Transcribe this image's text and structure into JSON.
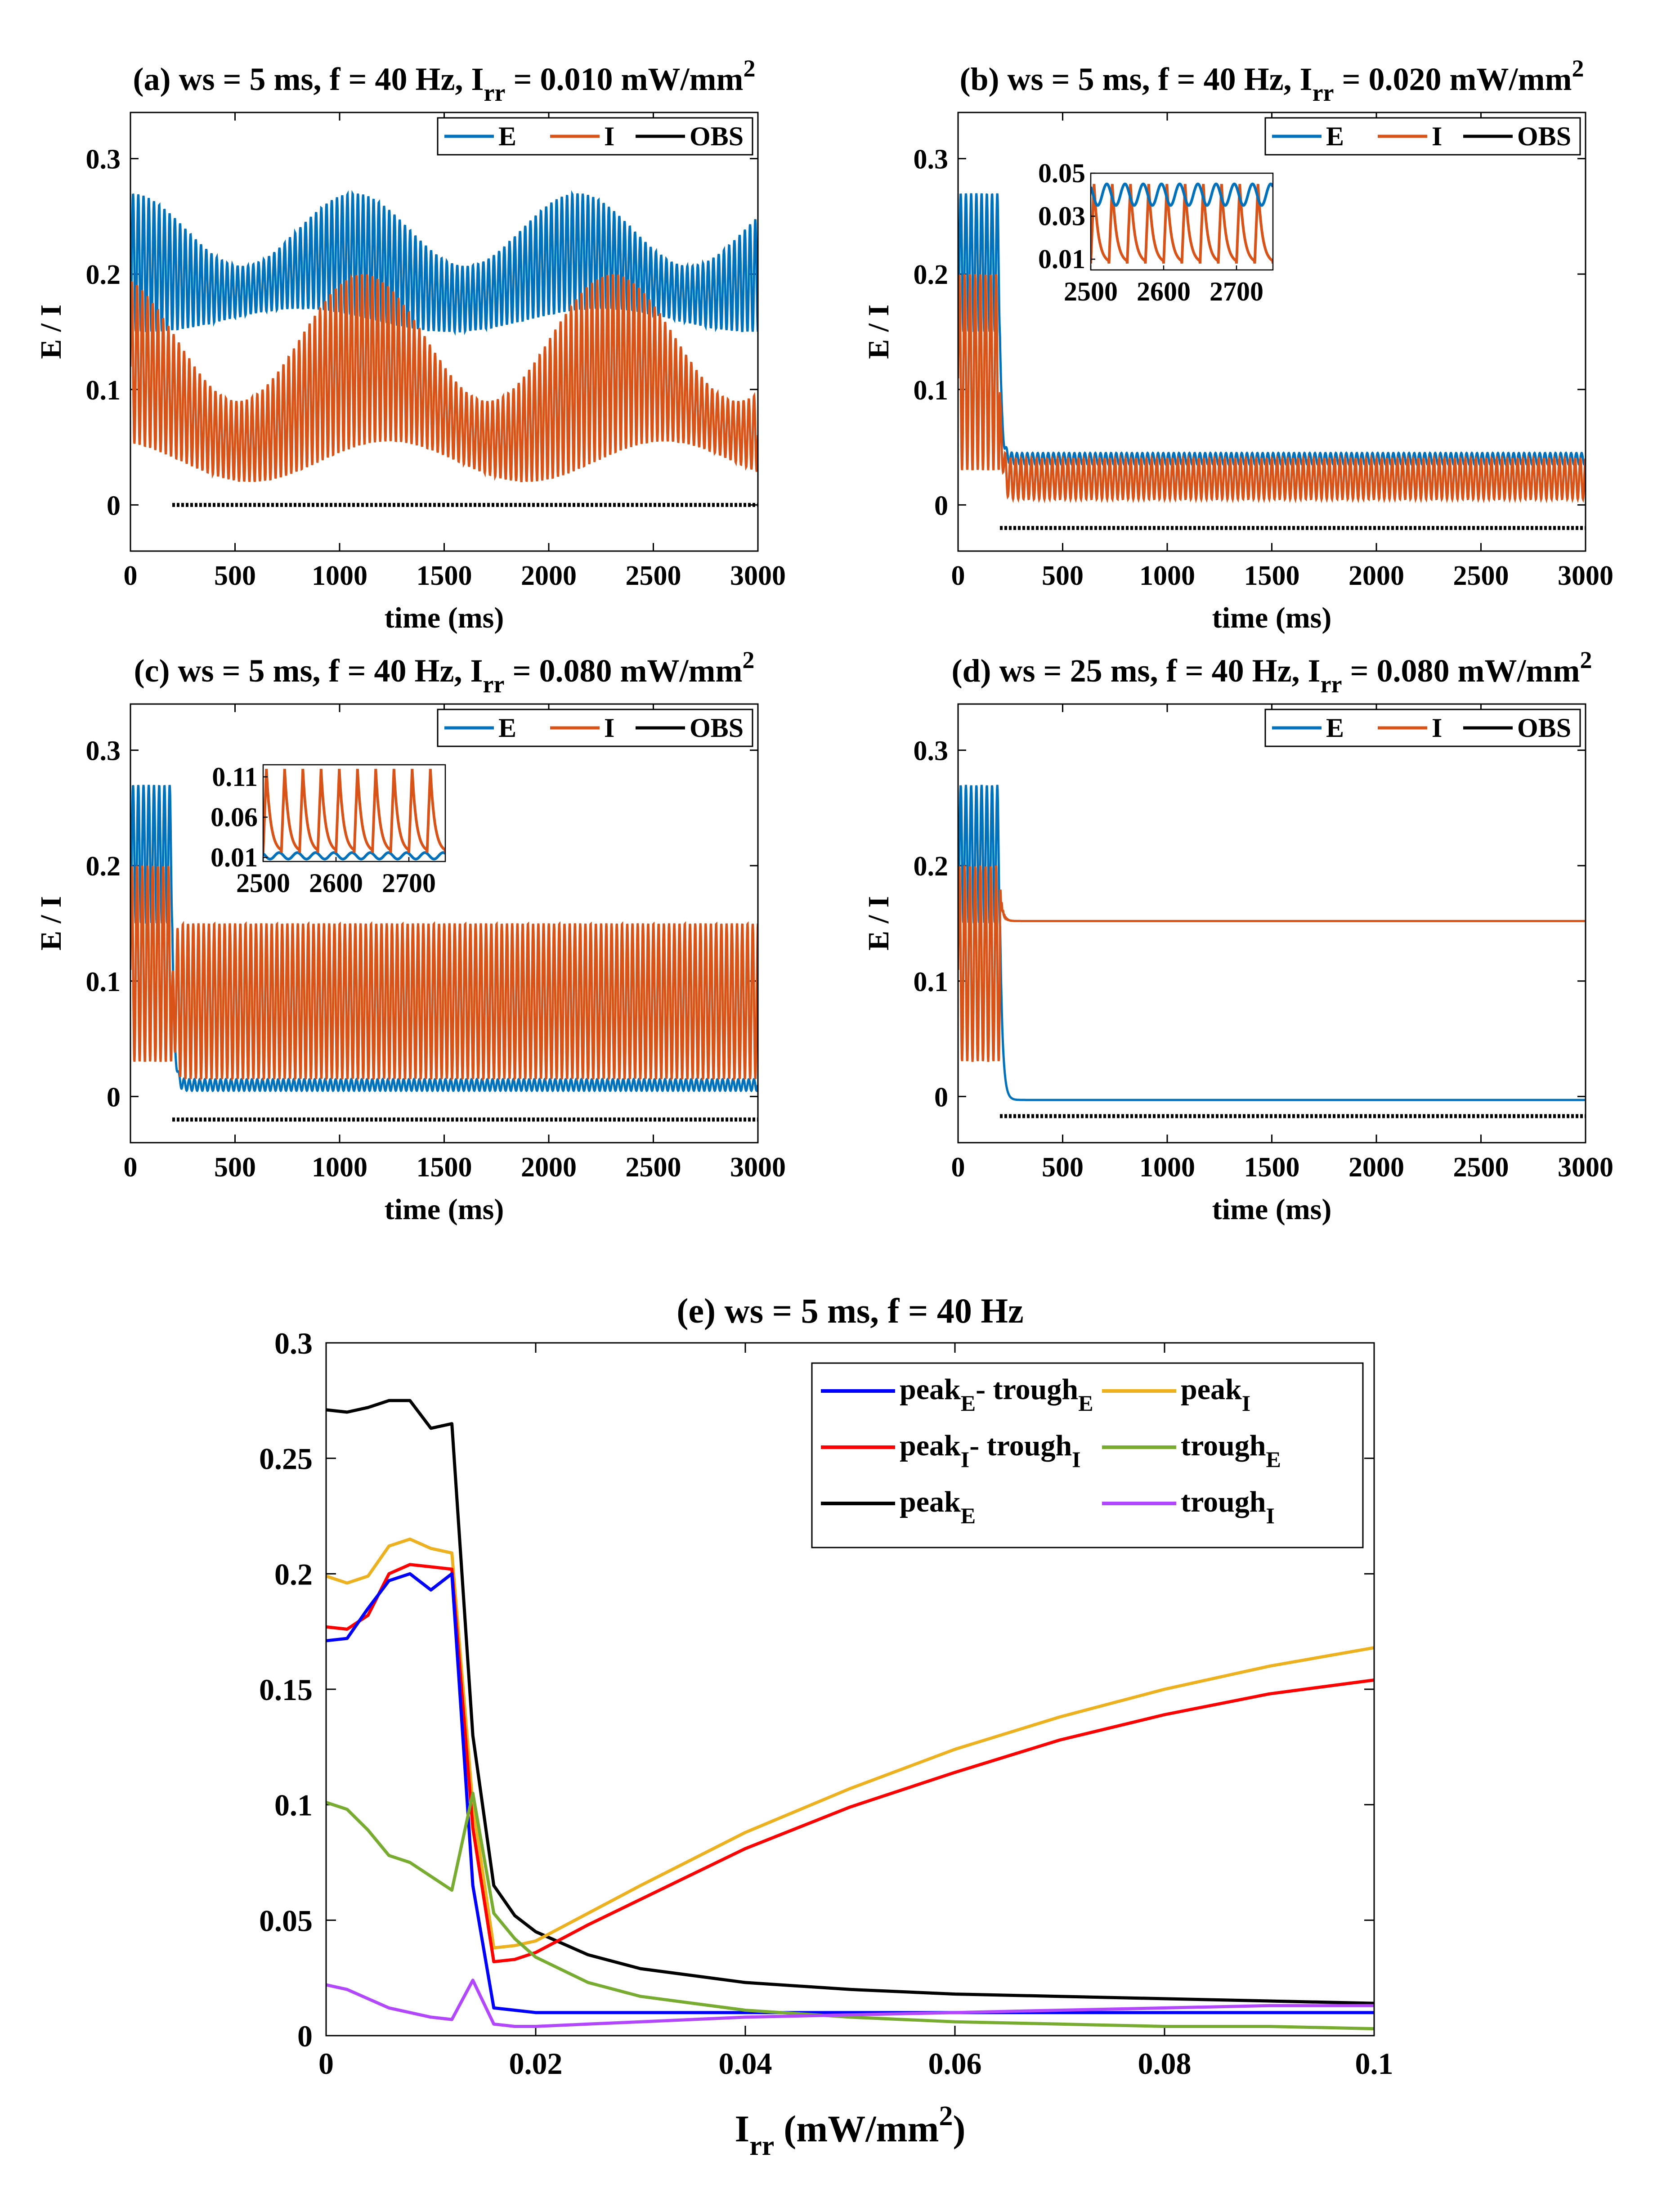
{
  "colors": {
    "E": "#0072BD",
    "I": "#D95319",
    "OBS": "#000000",
    "blue": "#0000FF",
    "red": "#FF0000",
    "black": "#000000",
    "yellow": "#EDB120",
    "green": "#77AC30",
    "purple": "#B347FF"
  },
  "chart_data": [
    {
      "id": "a",
      "type": "line",
      "title": "(a) ws = 5 ms, f = 40 Hz, I",
      "title_sub": "rr",
      "title_tail": " = 0.010 mW/mm",
      "title_sup": "2",
      "xlabel": "time (ms)",
      "ylabel": "E / I",
      "xlim": [
        0,
        3000
      ],
      "ylim": [
        -0.04,
        0.34
      ],
      "xticks": [
        "0",
        "500",
        "1000",
        "1500",
        "2000",
        "2500",
        "3000"
      ],
      "yticks": [
        "0",
        "0.1",
        "0.2",
        "0.3"
      ],
      "legend": [
        "E",
        "I",
        "OBS"
      ],
      "obs_level": 0.0,
      "obs_start": 200,
      "series": [
        {
          "name": "E",
          "description": "continuous irregular gamma oscillation",
          "min": 0.15,
          "max": 0.27
        },
        {
          "name": "I",
          "description": "continuous irregular gamma oscillation",
          "min": 0.02,
          "max": 0.2
        },
        {
          "name": "OBS",
          "description": "stimulus marker from 200 ms",
          "value": 0.0
        }
      ]
    },
    {
      "id": "b",
      "type": "line",
      "title": "(b) ws = 5 ms, f = 40 Hz, I",
      "title_sub": "rr",
      "title_tail": " = 0.020 mW/mm",
      "title_sup": "2",
      "xlabel": "time (ms)",
      "ylabel": "E / I",
      "xlim": [
        0,
        3000
      ],
      "ylim": [
        -0.04,
        0.34
      ],
      "xticks": [
        "0",
        "500",
        "1000",
        "1500",
        "2000",
        "2500",
        "3000"
      ],
      "yticks": [
        "0",
        "0.1",
        "0.2",
        "0.3"
      ],
      "legend": [
        "E",
        "I",
        "OBS"
      ],
      "obs_level": -0.02,
      "obs_start": 200,
      "series": [
        {
          "name": "E",
          "pre": [
            0.15,
            0.27
          ],
          "post": [
            0.035,
            0.045
          ]
        },
        {
          "name": "I",
          "pre": [
            0.03,
            0.2
          ],
          "post": [
            0.005,
            0.04
          ]
        },
        {
          "name": "OBS",
          "value": -0.02
        }
      ],
      "inset": {
        "xlim": [
          2500,
          2750
        ],
        "ylim": [
          0.005,
          0.05
        ],
        "xticks": [
          "2500",
          "2600",
          "2700"
        ],
        "yticks": [
          "0.01",
          "0.03",
          "0.05"
        ],
        "E_range": [
          0.035,
          0.045
        ],
        "I_range": [
          0.008,
          0.045
        ]
      }
    },
    {
      "id": "c",
      "type": "line",
      "title": "(c) ws = 5 ms, f = 40 Hz, I",
      "title_sub": "rr",
      "title_tail": " = 0.080 mW/mm",
      "title_sup": "2",
      "xlabel": "time (ms)",
      "ylabel": "E / I",
      "xlim": [
        0,
        3000
      ],
      "ylim": [
        -0.04,
        0.34
      ],
      "xticks": [
        "0",
        "500",
        "1000",
        "1500",
        "2000",
        "2500",
        "3000"
      ],
      "yticks": [
        "0",
        "0.1",
        "0.2",
        "0.3"
      ],
      "legend": [
        "E",
        "I",
        "OBS"
      ],
      "obs_level": -0.02,
      "obs_start": 200,
      "series": [
        {
          "name": "E",
          "pre": [
            0.15,
            0.27
          ],
          "post": [
            0.005,
            0.015
          ]
        },
        {
          "name": "I",
          "pre": [
            0.03,
            0.2
          ],
          "post": [
            0.015,
            0.15
          ]
        },
        {
          "name": "OBS",
          "value": -0.02
        }
      ],
      "inset": {
        "xlim": [
          2500,
          2750
        ],
        "ylim": [
          0.005,
          0.125
        ],
        "xticks": [
          "2500",
          "2600",
          "2700"
        ],
        "yticks": [
          "0.01",
          "0.06",
          "0.11"
        ],
        "E_range": [
          0.008,
          0.016
        ],
        "I_range": [
          0.016,
          0.12
        ]
      }
    },
    {
      "id": "d",
      "type": "line",
      "title": "(d) ws = 25 ms, f = 40 Hz, I",
      "title_sub": "rr",
      "title_tail": " = 0.080 mW/mm",
      "title_sup": "2",
      "xlabel": "time (ms)",
      "ylabel": "E / I",
      "xlim": [
        0,
        3000
      ],
      "ylim": [
        -0.04,
        0.34
      ],
      "xticks": [
        "0",
        "500",
        "1000",
        "1500",
        "2000",
        "2500",
        "3000"
      ],
      "yticks": [
        "0",
        "0.1",
        "0.2",
        "0.3"
      ],
      "legend": [
        "E",
        "I",
        "OBS"
      ],
      "obs_level": -0.017,
      "obs_start": 200,
      "series": [
        {
          "name": "E",
          "pre": [
            0.15,
            0.27
          ],
          "post_value": -0.003
        },
        {
          "name": "I",
          "pre": [
            0.03,
            0.2
          ],
          "post_value": 0.152
        },
        {
          "name": "OBS",
          "value": -0.017
        }
      ]
    },
    {
      "id": "e",
      "type": "line",
      "title": "(e) ws = 5 ms, f = 40 Hz",
      "xlabel_main": "I",
      "xlabel_sub": "rr",
      "xlabel_tail": " (mW/mm",
      "xlabel_sup": "2",
      "xlabel_end": ")",
      "xlim": [
        0,
        0.1
      ],
      "ylim": [
        0,
        0.3
      ],
      "xticks": [
        "0",
        "0.02",
        "0.04",
        "0.06",
        "0.08",
        "0.1"
      ],
      "yticks": [
        "0",
        "0.05",
        "0.1",
        "0.15",
        "0.2",
        "0.25",
        "0.3"
      ],
      "legend": [
        {
          "key": "pe_te",
          "main": "peak",
          "sub": "E",
          "mid": "- trough",
          "sub2": "E"
        },
        {
          "key": "pi",
          "main": "peak",
          "sub": "I",
          "mid": "",
          "sub2": ""
        },
        {
          "key": "pi_ti",
          "main": "peak",
          "sub": "I",
          "mid": "- trough",
          "sub2": "I"
        },
        {
          "key": "te",
          "main": "trough",
          "sub": "E",
          "mid": "",
          "sub2": ""
        },
        {
          "key": "pe",
          "main": "peak",
          "sub": "E",
          "mid": "",
          "sub2": ""
        },
        {
          "key": "ti",
          "main": "trough",
          "sub": "I",
          "mid": "",
          "sub2": ""
        }
      ],
      "x": [
        0,
        0.002,
        0.004,
        0.006,
        0.008,
        0.01,
        0.012,
        0.014,
        0.016,
        0.018,
        0.02,
        0.025,
        0.03,
        0.04,
        0.05,
        0.06,
        0.07,
        0.08,
        0.09,
        0.1
      ],
      "series": [
        {
          "key": "pe",
          "name": "peak_E",
          "values": [
            0.271,
            0.27,
            0.272,
            0.275,
            0.275,
            0.263,
            0.265,
            0.13,
            0.065,
            0.052,
            0.045,
            0.035,
            0.029,
            0.023,
            0.02,
            0.018,
            0.017,
            0.016,
            0.015,
            0.014
          ]
        },
        {
          "key": "pi",
          "name": "peak_I",
          "values": [
            0.199,
            0.196,
            0.199,
            0.212,
            0.215,
            0.211,
            0.209,
            0.1,
            0.038,
            0.039,
            0.041,
            0.053,
            0.065,
            0.088,
            0.107,
            0.124,
            0.138,
            0.15,
            0.16,
            0.168
          ]
        },
        {
          "key": "pi_ti",
          "name": "peak_I - trough_I",
          "values": [
            0.177,
            0.176,
            0.182,
            0.2,
            0.204,
            0.203,
            0.202,
            0.09,
            0.032,
            0.033,
            0.036,
            0.048,
            0.059,
            0.081,
            0.099,
            0.114,
            0.128,
            0.139,
            0.148,
            0.154
          ]
        },
        {
          "key": "pe_te",
          "name": "peak_E - trough_E",
          "values": [
            0.171,
            0.172,
            0.185,
            0.197,
            0.2,
            0.193,
            0.2,
            0.065,
            0.012,
            0.011,
            0.01,
            0.01,
            0.01,
            0.01,
            0.01,
            0.01,
            0.01,
            0.01,
            0.01,
            0.01
          ]
        },
        {
          "key": "te",
          "name": "trough_E",
          "values": [
            0.101,
            0.098,
            0.089,
            0.078,
            0.075,
            0.069,
            0.063,
            0.105,
            0.053,
            0.042,
            0.034,
            0.023,
            0.017,
            0.011,
            0.008,
            0.006,
            0.005,
            0.004,
            0.004,
            0.003
          ]
        },
        {
          "key": "ti",
          "name": "trough_I",
          "values": [
            0.022,
            0.02,
            0.016,
            0.012,
            0.01,
            0.008,
            0.007,
            0.024,
            0.005,
            0.004,
            0.004,
            0.005,
            0.006,
            0.008,
            0.009,
            0.01,
            0.011,
            0.012,
            0.013,
            0.013
          ]
        }
      ]
    }
  ]
}
